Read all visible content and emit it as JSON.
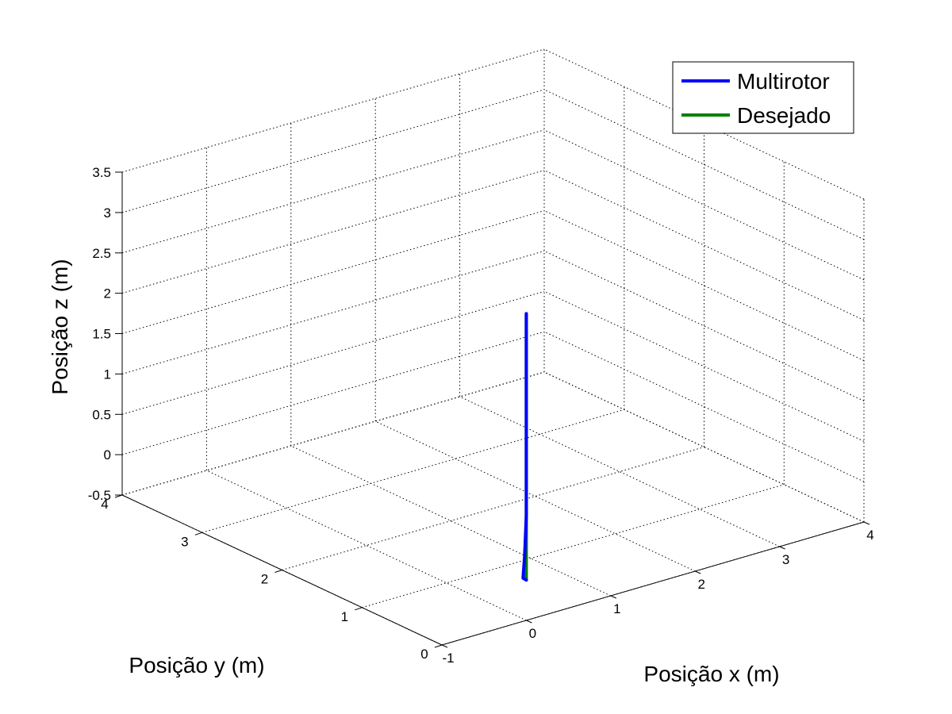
{
  "chart_data": {
    "type": "line3d",
    "title": "",
    "xlabel": "Posição x (m)",
    "ylabel": "Posição y (m)",
    "zlabel": "Posição z (m)",
    "xlim": [
      -1,
      4
    ],
    "ylim": [
      0,
      4
    ],
    "zlim": [
      -0.5,
      3.5
    ],
    "xticks": [
      "-1",
      "0",
      "1",
      "2",
      "3",
      "4"
    ],
    "yticks": [
      "0",
      "1",
      "2",
      "3",
      "4"
    ],
    "zticks": [
      "-0.5",
      "0",
      "0.5",
      "1",
      "1.5",
      "2",
      "2.5",
      "3",
      "3.5"
    ],
    "grid": true,
    "legend_position": "top-right",
    "series": [
      {
        "name": "Desejado",
        "color": "#008000",
        "points": [
          {
            "x": 0,
            "y": 0,
            "z": 0
          },
          {
            "x": 0,
            "y": 0,
            "z": 0.5
          },
          {
            "x": 0,
            "y": 0,
            "z": 1
          },
          {
            "x": 0,
            "y": 0,
            "z": 1.5
          },
          {
            "x": 0,
            "y": 0,
            "z": 2
          },
          {
            "x": 0,
            "y": 0,
            "z": 2.5
          },
          {
            "x": 0,
            "y": 0,
            "z": 3
          },
          {
            "x": 0,
            "y": 0,
            "z": 3.3
          }
        ]
      },
      {
        "name": "Multirotor",
        "color": "#0000ff",
        "points": [
          {
            "x": 0,
            "y": 0,
            "z": 0
          },
          {
            "x": -0.02,
            "y": 0.02,
            "z": 0.02
          },
          {
            "x": -0.01,
            "y": 0.01,
            "z": 0.3
          },
          {
            "x": 0,
            "y": 0,
            "z": 0.8
          },
          {
            "x": 0,
            "y": 0,
            "z": 1.3
          },
          {
            "x": 0,
            "y": 0,
            "z": 1.8
          },
          {
            "x": 0,
            "y": 0,
            "z": 2.2
          },
          {
            "x": 0,
            "y": 0,
            "z": 2.45
          },
          {
            "x": 0,
            "y": 0,
            "z": 3.3
          }
        ]
      }
    ]
  }
}
